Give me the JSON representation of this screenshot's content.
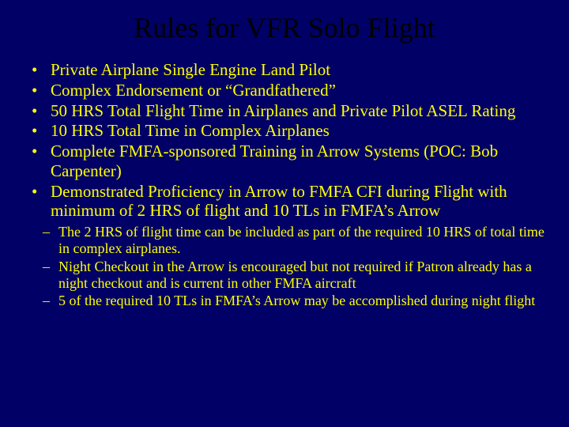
{
  "title": "Rules for VFR Solo Flight",
  "bullets": [
    "Private Airplane Single Engine Land Pilot",
    "Complex Endorsement or “Grandfathered”",
    "50 HRS Total Flight Time in Airplanes and Private Pilot ASEL Rating",
    "10 HRS Total Time in Complex Airplanes",
    "Complete FMFA-sponsored Training in Arrow Systems (POC: Bob Carpenter)",
    "Demonstrated Proficiency in Arrow to FMFA CFI during Flight with minimum of 2 HRS of flight and 10 TLs in FMFA’s Arrow"
  ],
  "sub_bullets": [
    "The 2 HRS of flight time can be included as part of the required 10 HRS of total time in complex airplanes.",
    "Night Checkout in the Arrow is encouraged but not required if Patron already has a night checkout and is current in other FMFA aircraft",
    "5 of the required 10 TLs in FMFA’s Arrow may be accomplished during night flight"
  ],
  "colors": {
    "background": "#000066",
    "title": "#000000",
    "body_text": "#ffff00"
  },
  "typography": {
    "title_fontsize": 36,
    "bullet_fontsize": 21,
    "sub_bullet_fontsize": 18,
    "font_family": "Times New Roman"
  }
}
